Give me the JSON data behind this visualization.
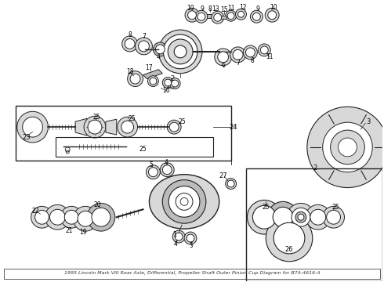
{
  "title": "Outer Pinion Cup",
  "part_number": "B7A-4616-A",
  "vehicle": "1995 Lincoln Mark VIII",
  "section": "Rear Axle, Differential, Propeller Shaft",
  "background_color": "#ffffff",
  "line_color": "#222222",
  "fill_light": "#d8d8d8",
  "fill_mid": "#bbbbbb",
  "fill_dark": "#999999",
  "text_color": "#000000",
  "figsize": [
    4.9,
    3.6
  ],
  "dpi": 100,
  "caption": "Outer Pinion Cup Diagram for B7A-4616-A"
}
